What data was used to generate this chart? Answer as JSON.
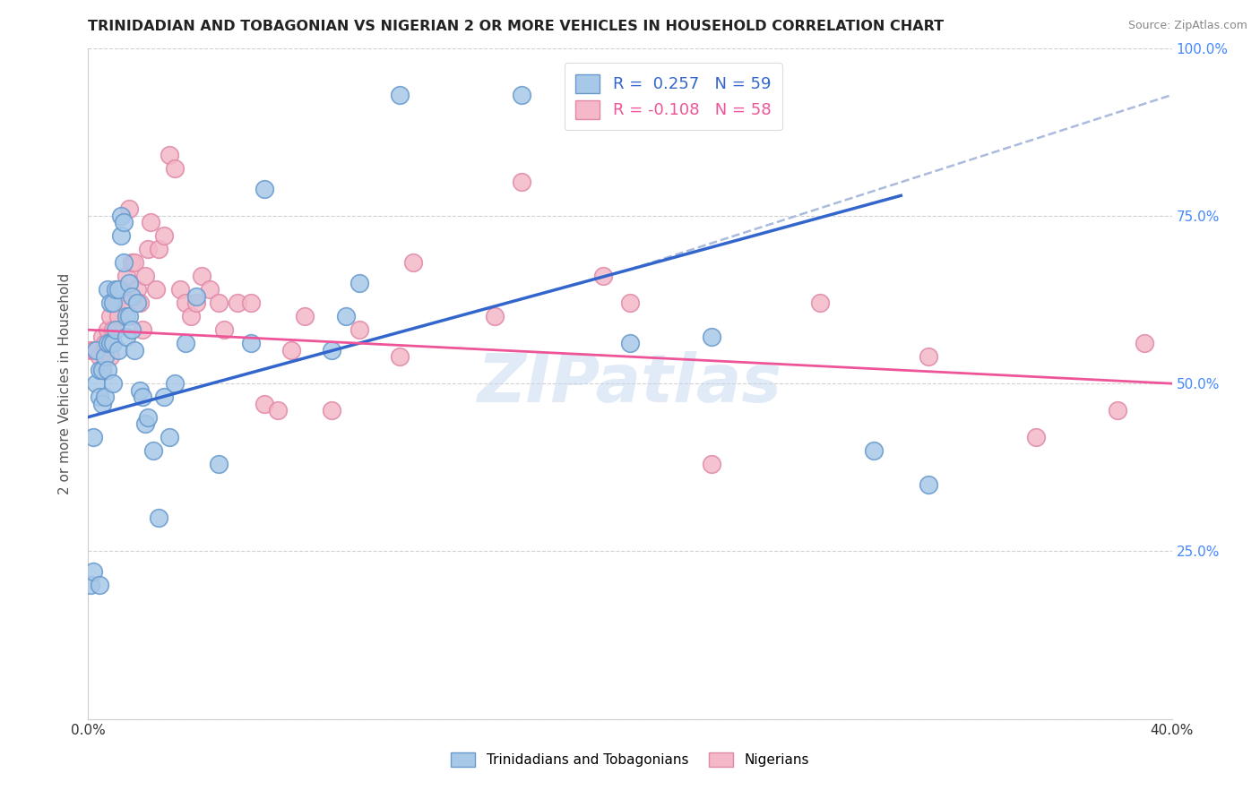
{
  "title": "TRINIDADIAN AND TOBAGONIAN VS NIGERIAN 2 OR MORE VEHICLES IN HOUSEHOLD CORRELATION CHART",
  "source": "Source: ZipAtlas.com",
  "ylabel": "2 or more Vehicles in Household",
  "x_min": 0.0,
  "x_max": 0.4,
  "y_min": 0.0,
  "y_max": 1.0,
  "x_ticks": [
    0.0,
    0.05,
    0.1,
    0.15,
    0.2,
    0.25,
    0.3,
    0.35,
    0.4
  ],
  "y_ticks": [
    0.0,
    0.25,
    0.5,
    0.75,
    1.0
  ],
  "y_tick_labels_right": [
    "",
    "25.0%",
    "50.0%",
    "75.0%",
    "100.0%"
  ],
  "blue_color": "#a8c8e8",
  "pink_color": "#f4b8c8",
  "blue_edge_color": "#6699cc",
  "pink_edge_color": "#e088a8",
  "blue_line_color": "#3366cc",
  "pink_line_color": "#ee5599",
  "legend_label1": "Trinidadians and Tobagonians",
  "legend_label2": "Nigerians",
  "blue_line_x0": 0.0,
  "blue_line_y0": 0.45,
  "blue_line_x1": 0.3,
  "blue_line_y1": 0.78,
  "pink_line_x0": 0.0,
  "pink_line_y0": 0.58,
  "pink_line_x1": 0.4,
  "pink_line_y1": 0.5,
  "dash_line_x0": 0.2,
  "dash_line_y0": 0.67,
  "dash_line_x1": 0.4,
  "dash_line_y1": 0.93,
  "watermark": "ZIPatlas",
  "background_color": "#ffffff",
  "grid_color": "#cccccc",
  "blue_scatter_x": [
    0.001,
    0.002,
    0.002,
    0.003,
    0.003,
    0.004,
    0.004,
    0.004,
    0.005,
    0.005,
    0.006,
    0.006,
    0.007,
    0.007,
    0.007,
    0.008,
    0.008,
    0.009,
    0.009,
    0.009,
    0.01,
    0.01,
    0.011,
    0.011,
    0.012,
    0.012,
    0.013,
    0.013,
    0.014,
    0.014,
    0.015,
    0.015,
    0.016,
    0.016,
    0.017,
    0.018,
    0.019,
    0.02,
    0.021,
    0.022,
    0.024,
    0.026,
    0.028,
    0.03,
    0.032,
    0.036,
    0.04,
    0.048,
    0.06,
    0.065,
    0.09,
    0.095,
    0.1,
    0.115,
    0.16,
    0.2,
    0.23,
    0.29,
    0.31
  ],
  "blue_scatter_y": [
    0.2,
    0.22,
    0.42,
    0.5,
    0.55,
    0.52,
    0.48,
    0.2,
    0.52,
    0.47,
    0.54,
    0.48,
    0.52,
    0.64,
    0.56,
    0.62,
    0.56,
    0.56,
    0.62,
    0.5,
    0.58,
    0.64,
    0.64,
    0.55,
    0.72,
    0.75,
    0.74,
    0.68,
    0.6,
    0.57,
    0.65,
    0.6,
    0.58,
    0.63,
    0.55,
    0.62,
    0.49,
    0.48,
    0.44,
    0.45,
    0.4,
    0.3,
    0.48,
    0.42,
    0.5,
    0.56,
    0.63,
    0.38,
    0.56,
    0.79,
    0.55,
    0.6,
    0.65,
    0.93,
    0.93,
    0.56,
    0.57,
    0.4,
    0.35
  ],
  "pink_scatter_x": [
    0.001,
    0.002,
    0.003,
    0.004,
    0.005,
    0.005,
    0.006,
    0.007,
    0.008,
    0.008,
    0.009,
    0.01,
    0.011,
    0.012,
    0.013,
    0.014,
    0.015,
    0.016,
    0.017,
    0.018,
    0.019,
    0.02,
    0.021,
    0.022,
    0.023,
    0.025,
    0.026,
    0.028,
    0.03,
    0.032,
    0.034,
    0.036,
    0.038,
    0.04,
    0.042,
    0.045,
    0.048,
    0.05,
    0.055,
    0.06,
    0.065,
    0.07,
    0.075,
    0.08,
    0.09,
    0.1,
    0.115,
    0.12,
    0.15,
    0.16,
    0.19,
    0.2,
    0.23,
    0.27,
    0.31,
    0.35,
    0.38,
    0.39
  ],
  "pink_scatter_y": [
    0.55,
    0.55,
    0.55,
    0.54,
    0.57,
    0.52,
    0.56,
    0.58,
    0.6,
    0.54,
    0.58,
    0.62,
    0.6,
    0.64,
    0.62,
    0.66,
    0.76,
    0.68,
    0.68,
    0.64,
    0.62,
    0.58,
    0.66,
    0.7,
    0.74,
    0.64,
    0.7,
    0.72,
    0.84,
    0.82,
    0.64,
    0.62,
    0.6,
    0.62,
    0.66,
    0.64,
    0.62,
    0.58,
    0.62,
    0.62,
    0.47,
    0.46,
    0.55,
    0.6,
    0.46,
    0.58,
    0.54,
    0.68,
    0.6,
    0.8,
    0.66,
    0.62,
    0.38,
    0.62,
    0.54,
    0.42,
    0.46,
    0.56
  ]
}
